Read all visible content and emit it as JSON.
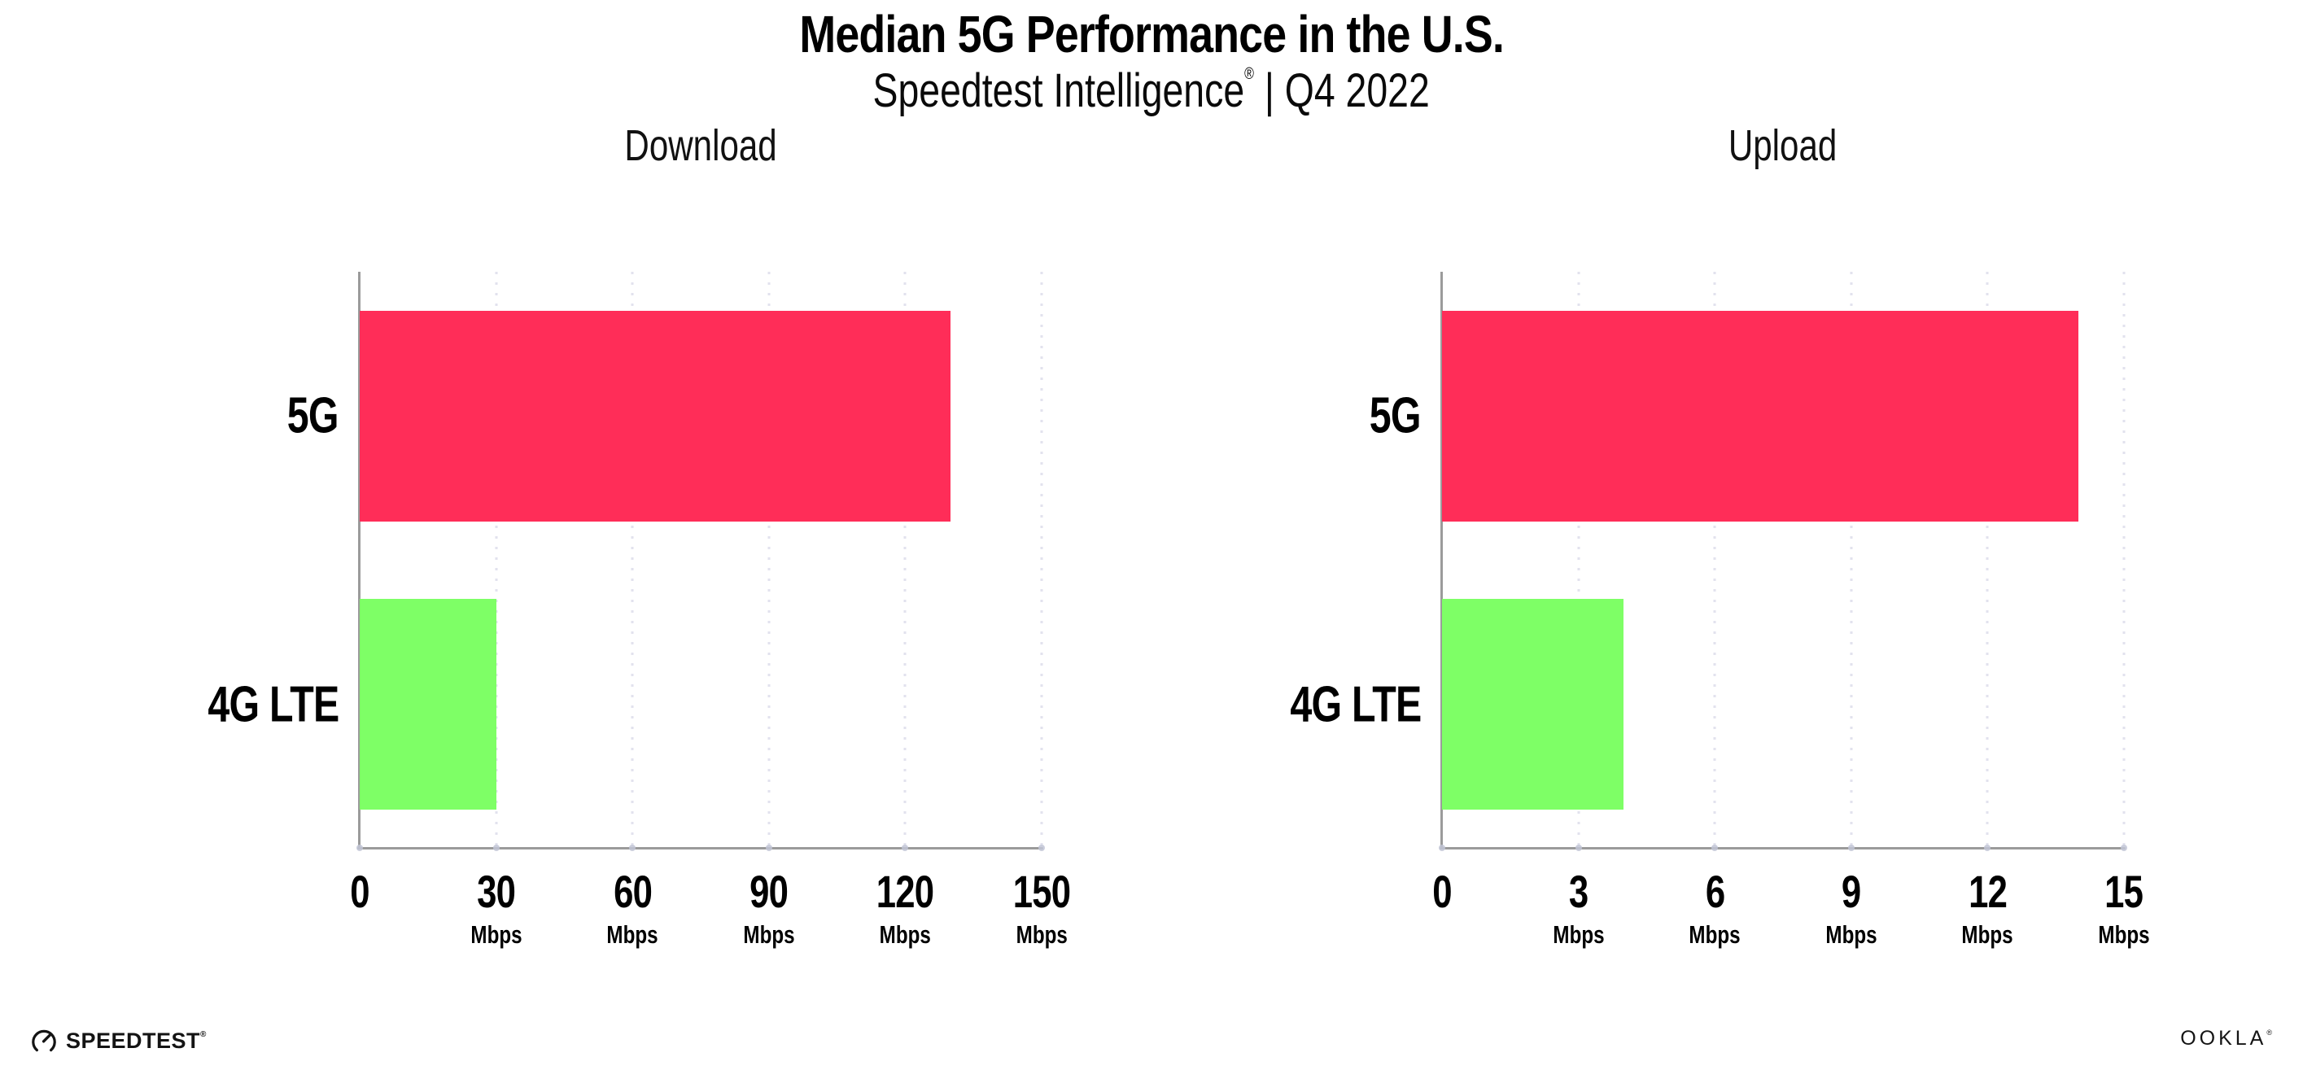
{
  "header": {
    "title": "Median 5G Performance in the U.S.",
    "subtitle_brand": "Speedtest Intelligence",
    "subtitle_reg": "®",
    "subtitle_rest": " | Q4 2022"
  },
  "colors": {
    "bar_5g": "#ff2d58",
    "bar_4g_lte": "#7eff66",
    "axis_line": "#9b9b9b",
    "gridline": "#e2e2ee",
    "text": "#000000"
  },
  "chart_data": [
    {
      "type": "bar",
      "orientation": "horizontal",
      "title": "Download",
      "categories": [
        "5G",
        "4G LTE"
      ],
      "values": [
        130,
        30
      ],
      "unit": "Mbps",
      "xlim": [
        0,
        150
      ],
      "xticks": [
        0,
        30,
        60,
        90,
        120,
        150
      ],
      "bar_colors": [
        "#ff2d58",
        "#7eff66"
      ],
      "grid": "dotted vertical gridlines at each tick",
      "legend": "none"
    },
    {
      "type": "bar",
      "orientation": "horizontal",
      "title": "Upload",
      "categories": [
        "5G",
        "4G LTE"
      ],
      "values": [
        14,
        4
      ],
      "unit": "Mbps",
      "xlim": [
        0,
        15
      ],
      "xticks": [
        0,
        3,
        6,
        9,
        12,
        15
      ],
      "bar_colors": [
        "#ff2d58",
        "#7eff66"
      ],
      "grid": "dotted vertical gridlines at each tick",
      "legend": "none"
    }
  ],
  "footer": {
    "speedtest_label": "SPEEDTEST",
    "speedtest_reg": "®",
    "ookla_label": "OOKLA",
    "ookla_reg": "®"
  }
}
